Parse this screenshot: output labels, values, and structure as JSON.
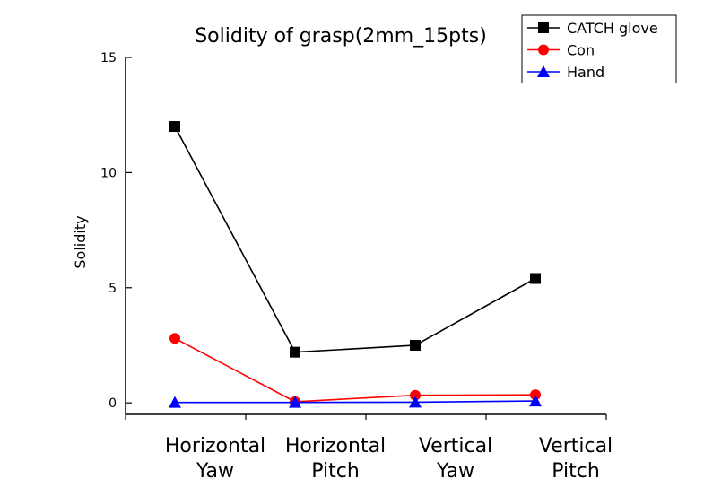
{
  "chart_data": {
    "type": "line",
    "title": "Solidity  of grasp(2mm_15pts)",
    "ylabel": "Solidity",
    "xlabel": "",
    "categories": [
      [
        "Horizontal",
        "Yaw"
      ],
      [
        "Horizontal",
        "Pitch"
      ],
      [
        "Vertical",
        "Yaw"
      ],
      [
        "Vertical",
        "Pitch"
      ]
    ],
    "ylim": [
      -0.5,
      15
    ],
    "yticks": [
      0,
      5,
      10,
      15
    ],
    "grid": false,
    "legend_position": "top-right",
    "series": [
      {
        "name": "CATCH glove",
        "color": "#000000",
        "marker": "square",
        "values": [
          12.0,
          2.2,
          2.5,
          5.4
        ]
      },
      {
        "name": "Con",
        "color": "#ff0000",
        "marker": "circle",
        "values": [
          2.8,
          0.05,
          0.33,
          0.35
        ]
      },
      {
        "name": "Hand",
        "color": "#0000ff",
        "marker": "triangle",
        "values": [
          0.02,
          0.02,
          0.03,
          0.08
        ]
      }
    ]
  }
}
